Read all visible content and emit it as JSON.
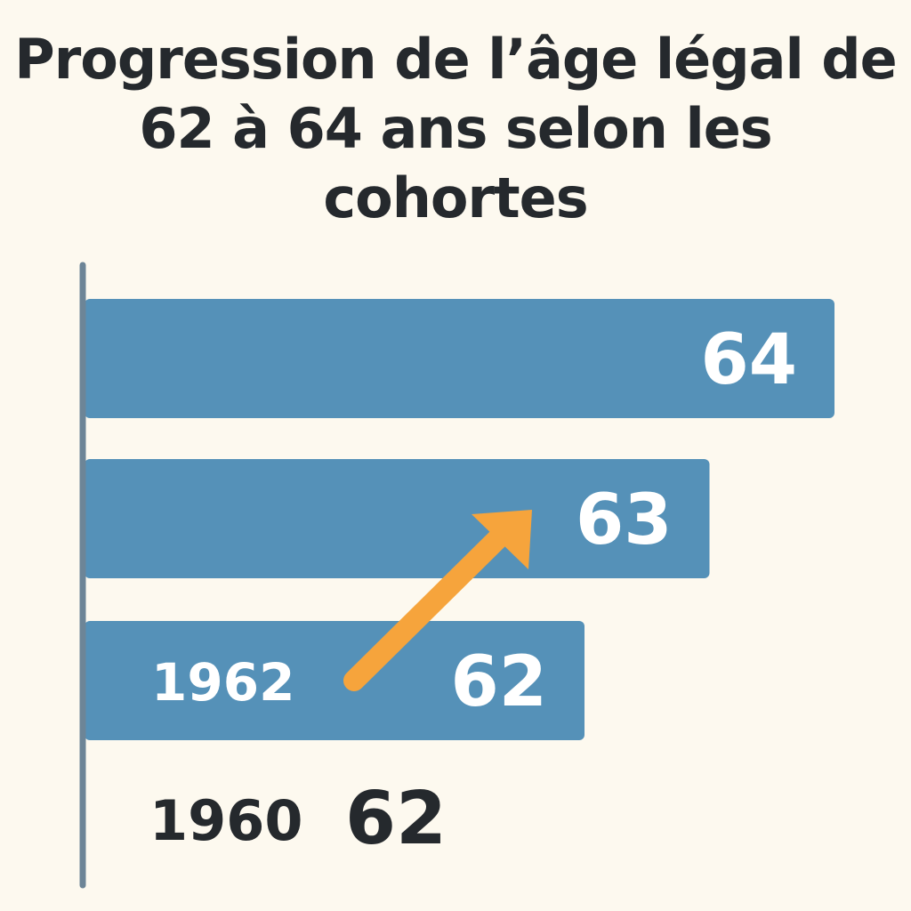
{
  "chart_data": {
    "type": "bar",
    "orientation": "horizontal",
    "title": "Progression de l’âge légal de 62 à 64 ans selon les cohortes",
    "categories": [
      "",
      "",
      "1962",
      "1960"
    ],
    "values": [
      64,
      63,
      62,
      62
    ],
    "value_labels": [
      "64",
      "63",
      "62",
      "62"
    ],
    "bar_drawn": [
      true,
      true,
      true,
      false
    ],
    "xlim": [
      58,
      64
    ],
    "grid": false,
    "legend": "none",
    "annotation": "orange arrow pointing upward from 62 to 63",
    "colors": {
      "bar": "#5591b8",
      "label_on_bar": "#ffffff",
      "label_off_bar": "#25292d",
      "arrow": "#f6a43c",
      "axis": "#6d8597",
      "background": "#fdf9ef"
    }
  }
}
